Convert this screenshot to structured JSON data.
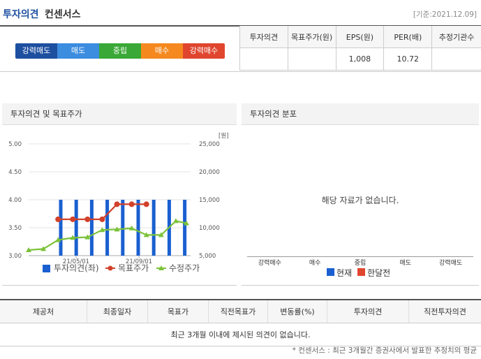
{
  "header": {
    "title": "투자의견",
    "subtitle": "컨센서스",
    "base_date": "[기준:2021.12.09]"
  },
  "opinion_scale": [
    {
      "label": "강력매도",
      "color": "#1d4fa0"
    },
    {
      "label": "매도",
      "color": "#3c8ce0"
    },
    {
      "label": "중립",
      "color": "#3aa836"
    },
    {
      "label": "매수",
      "color": "#f5891f"
    },
    {
      "label": "강력매수",
      "color": "#e0452e"
    }
  ],
  "consensus_table": {
    "headers": [
      "투자의견",
      "목표주가(원)",
      "EPS(원)",
      "PER(배)",
      "추정기관수"
    ],
    "values": [
      "",
      "",
      "1,008",
      "10.72",
      ""
    ]
  },
  "chart_panel": {
    "title": "투자의견 및 목표주가",
    "unit": "[원]",
    "legend": {
      "bar": "투자의견(좌)",
      "target": "목표주가",
      "price": "수정주가"
    }
  },
  "chart_data": {
    "type": "bar",
    "left_axis": {
      "ticks": [
        "5.00",
        "4.50",
        "4.00",
        "3.50",
        "3.00"
      ],
      "ylim": [
        3.0,
        5.0
      ]
    },
    "right_axis": {
      "ticks": [
        "25,000",
        "20,000",
        "15,000",
        "10,000",
        "5,000"
      ],
      "ylim": [
        5000,
        25000
      ]
    },
    "x_tick_labels": [
      "21/05/01",
      "21/09/01"
    ],
    "opinion_bars": [
      4.0,
      4.0,
      4.0,
      4.0,
      4.0,
      4.0,
      4.0,
      4.0,
      4.0
    ],
    "series": [
      {
        "name": "목표주가",
        "color": "#d2412b",
        "values": [
          null,
          null,
          11500,
          11500,
          11500,
          11500,
          14200,
          14200,
          14200,
          null,
          null,
          null
        ]
      },
      {
        "name": "수정주가",
        "color": "#7cc23a",
        "values": [
          6000,
          6200,
          7800,
          8200,
          8300,
          9600,
          9700,
          9900,
          8700,
          8700,
          11200,
          10800
        ]
      }
    ]
  },
  "dist_panel": {
    "title": "투자의견 분포",
    "empty": "해당 자료가 없습니다.",
    "categories": [
      "강력매수",
      "매수",
      "중립",
      "매도",
      "강력매도"
    ],
    "legend": [
      {
        "label": "현재",
        "color": "#1a5fd0"
      },
      {
        "label": "한달전",
        "color": "#e0452e"
      }
    ]
  },
  "history_table": {
    "headers": [
      "제공처",
      "최종일자",
      "목표가",
      "직전목표가",
      "변동률(%)",
      "투자의견",
      "직전투자의견"
    ],
    "empty": "최근 3개월 이내에 제시된 의견이 없습니다."
  },
  "footnote": "* 컨센서스 : 최근 3개월간 증권사에서 발표한 추정치의 평균"
}
